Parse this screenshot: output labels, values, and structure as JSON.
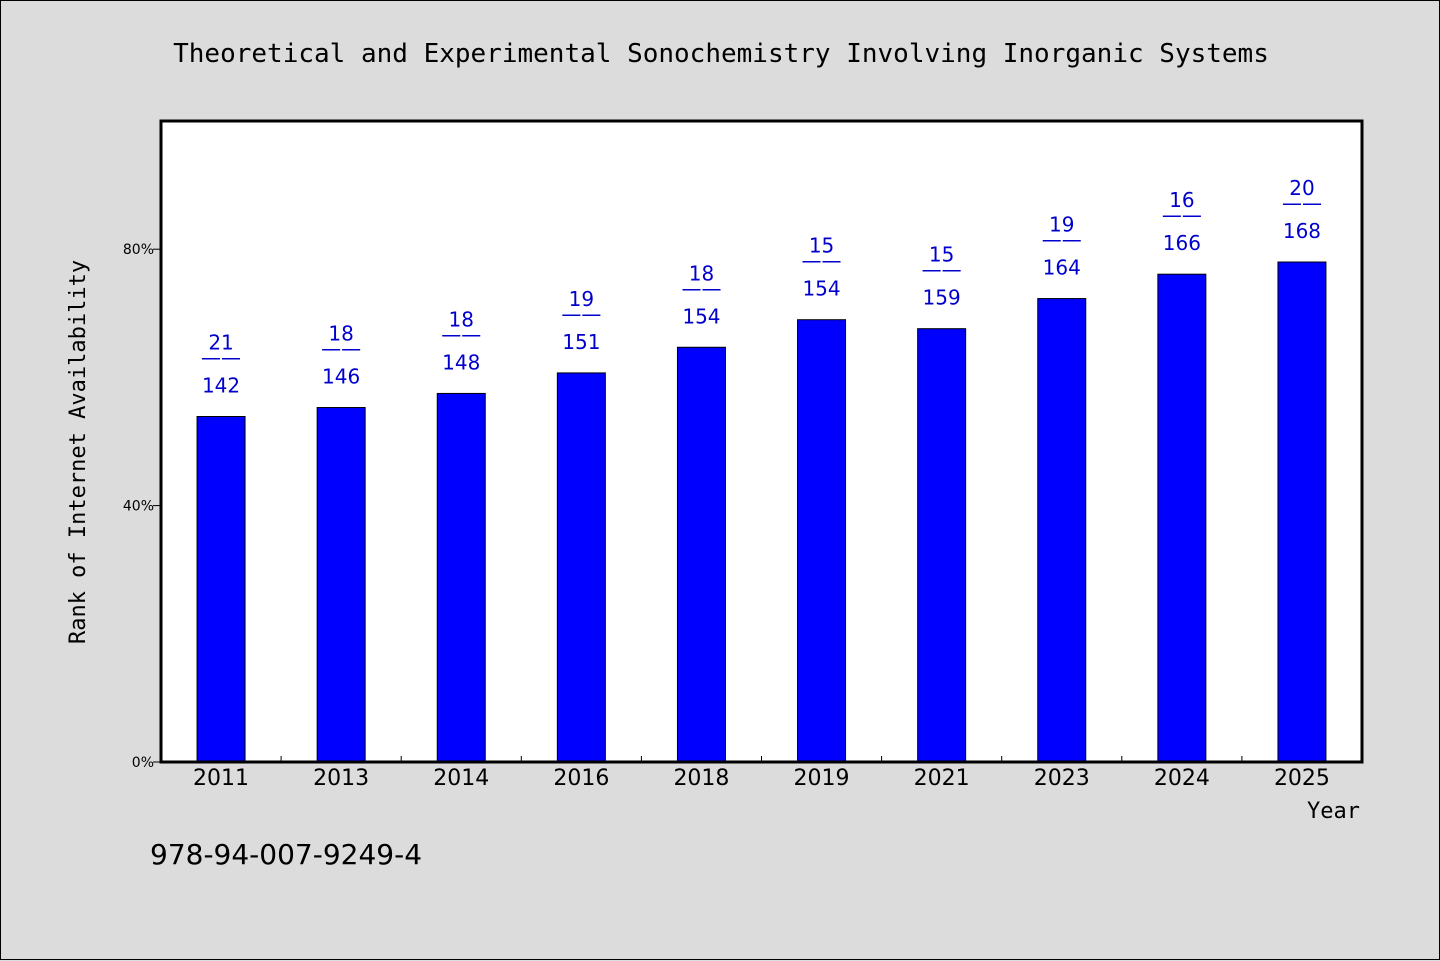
{
  "colors": {
    "background": "#dcdcdc",
    "plot_background": "#ffffff",
    "bar": "#0000ff",
    "label": "#0000cc"
  },
  "isbn": "978-94-007-9249-4",
  "chart_data": {
    "type": "bar",
    "title": "Theoretical and Experimental Sonochemistry Involving Inorganic Systems",
    "xlabel": "Year",
    "ylabel": "Rank of Internet Availability",
    "ylim": [
      0,
      100
    ],
    "yticks": [
      0,
      40,
      80
    ],
    "ytick_labels": [
      "0%",
      "40%",
      "80%"
    ],
    "grid": false,
    "categories": [
      "2011",
      "2013",
      "2014",
      "2016",
      "2018",
      "2019",
      "2021",
      "2023",
      "2024",
      "2025"
    ],
    "values": [
      53.9,
      55.3,
      57.5,
      60.7,
      64.7,
      69.0,
      67.6,
      72.3,
      76.1,
      78.0
    ],
    "data_labels": [
      {
        "top": "21",
        "sep": "——",
        "bottom": "142"
      },
      {
        "top": "18",
        "sep": "——",
        "bottom": "146"
      },
      {
        "top": "18",
        "sep": "——",
        "bottom": "148"
      },
      {
        "top": "19",
        "sep": "——",
        "bottom": "151"
      },
      {
        "top": "18",
        "sep": "——",
        "bottom": "154"
      },
      {
        "top": "15",
        "sep": "——",
        "bottom": "154"
      },
      {
        "top": "15",
        "sep": "——",
        "bottom": "159"
      },
      {
        "top": "19",
        "sep": "——",
        "bottom": "164"
      },
      {
        "top": "16",
        "sep": "——",
        "bottom": "166"
      },
      {
        "top": "20",
        "sep": "——",
        "bottom": "168"
      }
    ]
  }
}
